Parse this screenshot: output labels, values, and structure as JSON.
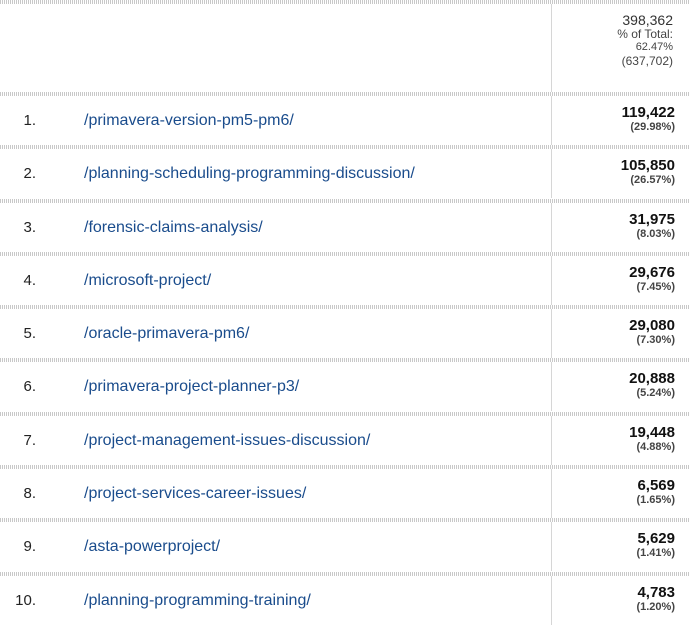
{
  "summary": {
    "total": "398,362",
    "pct_label": "% of Total:",
    "pct_value": "62.47%",
    "grand_total": "(637,702)"
  },
  "rows": [
    {
      "index": "1.",
      "page": "/primavera-version-pm5-pm6/",
      "value": "119,422",
      "pct": "(29.98%)"
    },
    {
      "index": "2.",
      "page": "/planning-scheduling-programming-discussion/",
      "value": "105,850",
      "pct": "(26.57%)"
    },
    {
      "index": "3.",
      "page": "/forensic-claims-analysis/",
      "value": "31,975",
      "pct": "(8.03%)"
    },
    {
      "index": "4.",
      "page": "/microsoft-project/",
      "value": "29,676",
      "pct": "(7.45%)"
    },
    {
      "index": "5.",
      "page": "/oracle-primavera-pm6/",
      "value": "29,080",
      "pct": "(7.30%)"
    },
    {
      "index": "6.",
      "page": "/primavera-project-planner-p3/",
      "value": "20,888",
      "pct": "(5.24%)"
    },
    {
      "index": "7.",
      "page": "/project-management-issues-discussion/",
      "value": "19,448",
      "pct": "(4.88%)"
    },
    {
      "index": "8.",
      "page": "/project-services-career-issues/",
      "value": "6,569",
      "pct": "(1.65%)"
    },
    {
      "index": "9.",
      "page": "/asta-powerproject/",
      "value": "5,629",
      "pct": "(1.41%)"
    },
    {
      "index": "10.",
      "page": "/planning-programming-training/",
      "value": "4,783",
      "pct": "(1.20%)"
    }
  ]
}
